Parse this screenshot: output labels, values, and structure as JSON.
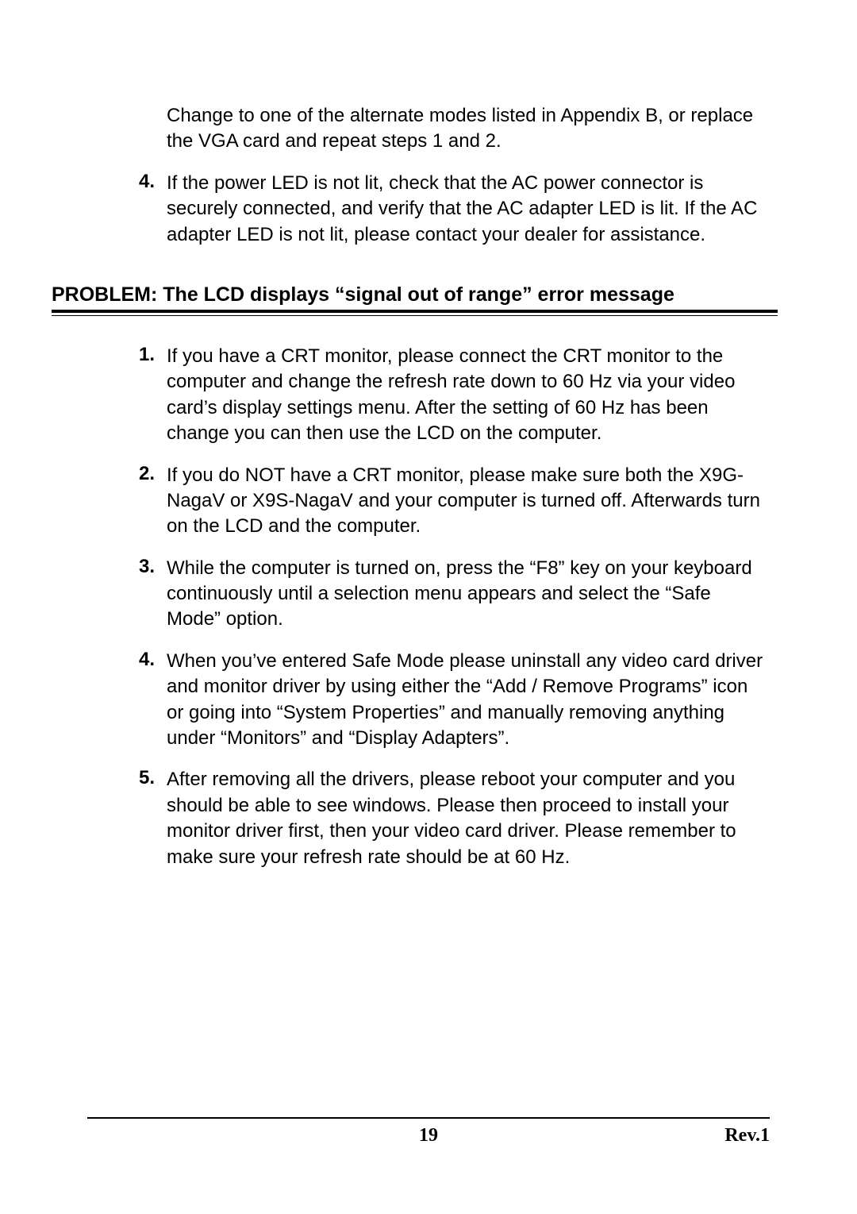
{
  "section1": {
    "continuation": "Change to one of the alternate modes listed in Appendix B, or replace the VGA card and repeat steps 1 and 2.",
    "items": [
      {
        "number": "4.",
        "text": "If the power LED is not lit, check that the AC power connector is securely connected, and verify that the AC adapter LED is lit.  If the AC adapter LED is not lit, please contact your dealer for assistance."
      }
    ]
  },
  "problem_heading": "PROBLEM: The LCD displays “signal out of range” error message",
  "section2": {
    "items": [
      {
        "number": "1.",
        "text": "If you have a CRT monitor, please connect the CRT monitor to the computer and change the refresh rate down to 60 Hz via your video card’s display settings menu.  After the setting of 60 Hz has been change you can then use the LCD on the computer."
      },
      {
        "number": "2.",
        "text": "If you do NOT have a CRT monitor, please make sure both the X9G-NagaV or X9S-NagaV and your computer is turned off.  Afterwards turn on the LCD and the computer."
      },
      {
        "number": "3.",
        "text": "While the computer is turned on, press the “F8” key on your keyboard continuously until a selection menu appears and select the “Safe Mode” option."
      },
      {
        "number": "4.",
        "text": "When you’ve entered Safe Mode please uninstall any video card driver and monitor driver by using either the “Add / Remove Programs” icon or going into “System Properties” and manually removing anything under “Monitors” and “Display Adapters”."
      },
      {
        "number": "5.",
        "text": "After removing all the drivers, please reboot your computer and you should be able to see windows.  Please then proceed to install your monitor driver first, then your video card driver.  Please remember to make sure your refresh rate should be at 60 Hz."
      }
    ]
  },
  "footer": {
    "page": "19",
    "rev": "Rev.1"
  }
}
